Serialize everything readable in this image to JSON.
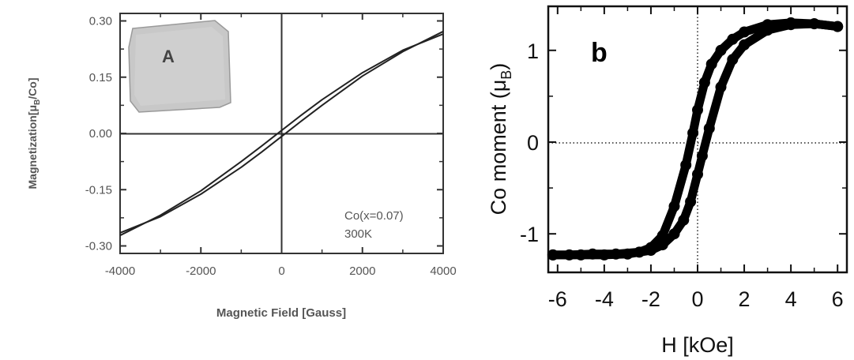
{
  "chart_data": [
    {
      "type": "line",
      "panel": "a",
      "xlabel": "Magnetic Field [Gauss]",
      "ylabel_main": "Magnetization[μ",
      "ylabel_sub": "B",
      "ylabel_tail": "/Co]",
      "xlim": [
        -4000,
        4000
      ],
      "ylim": [
        -0.32,
        0.32
      ],
      "xticks": [
        -4000,
        -2000,
        0,
        2000,
        4000
      ],
      "yticks": [
        0.3,
        0.15,
        0.0,
        -0.15,
        -0.3
      ],
      "ytick_labels": [
        "0.30",
        "0.15",
        "0.00",
        "-0.15",
        "-0.30"
      ],
      "annotations": [
        "Co(x=0.07)",
        "300K"
      ],
      "inset_label": "A",
      "series": [
        {
          "x": [
            -4000,
            -3000,
            -2000,
            -1000,
            -500,
            0,
            500,
            1000,
            2000,
            3000,
            4000
          ],
          "values": [
            -0.265,
            -0.222,
            -0.162,
            -0.09,
            -0.05,
            -0.008,
            0.034,
            0.075,
            0.153,
            0.218,
            0.272
          ]
        },
        {
          "x": [
            -4000,
            -3000,
            -2000,
            -1000,
            -500,
            0,
            500,
            1000,
            2000,
            3000,
            4000
          ],
          "values": [
            -0.272,
            -0.218,
            -0.153,
            -0.075,
            -0.034,
            0.008,
            0.05,
            0.09,
            0.162,
            0.222,
            0.265
          ]
        }
      ]
    },
    {
      "type": "scatter",
      "panel": "b",
      "panel_label": "b",
      "xlabel": "H [kOe]",
      "ylabel_main": "Co moment (μ",
      "ylabel_sub": "B",
      "ylabel_tail": ")",
      "xlim": [
        -6.4,
        6.4
      ],
      "ylim": [
        -1.42,
        1.48
      ],
      "xticks": [
        -6,
        -4,
        -2,
        0,
        2,
        4,
        6
      ],
      "yticks": [
        1,
        0,
        -1
      ],
      "ytick_labels": [
        "1",
        "0",
        "-1"
      ],
      "series": [
        {
          "x": [
            -6.2,
            -5.5,
            -4.5,
            -3.5,
            -2.5,
            -2.0,
            -1.5,
            -1.0,
            -0.5,
            -0.2,
            0.0,
            0.3,
            0.6,
            1.0,
            1.5,
            2.0,
            3.0,
            4.0,
            5.0,
            6.0
          ],
          "values": [
            -1.23,
            -1.23,
            -1.22,
            -1.22,
            -1.2,
            -1.15,
            -1.02,
            -0.7,
            -0.25,
            0.1,
            0.35,
            0.65,
            0.85,
            1.0,
            1.12,
            1.2,
            1.28,
            1.3,
            1.29,
            1.26
          ]
        },
        {
          "x": [
            6.0,
            5.0,
            4.0,
            3.0,
            2.0,
            1.5,
            1.0,
            0.5,
            0.2,
            0.0,
            -0.3,
            -0.6,
            -1.0,
            -1.5,
            -2.0,
            -3.0,
            -4.0,
            -5.0,
            -6.2
          ],
          "values": [
            1.26,
            1.29,
            1.28,
            1.22,
            1.06,
            0.9,
            0.6,
            0.15,
            -0.15,
            -0.35,
            -0.65,
            -0.85,
            -1.0,
            -1.12,
            -1.18,
            -1.22,
            -1.23,
            -1.23,
            -1.23
          ]
        }
      ]
    }
  ]
}
